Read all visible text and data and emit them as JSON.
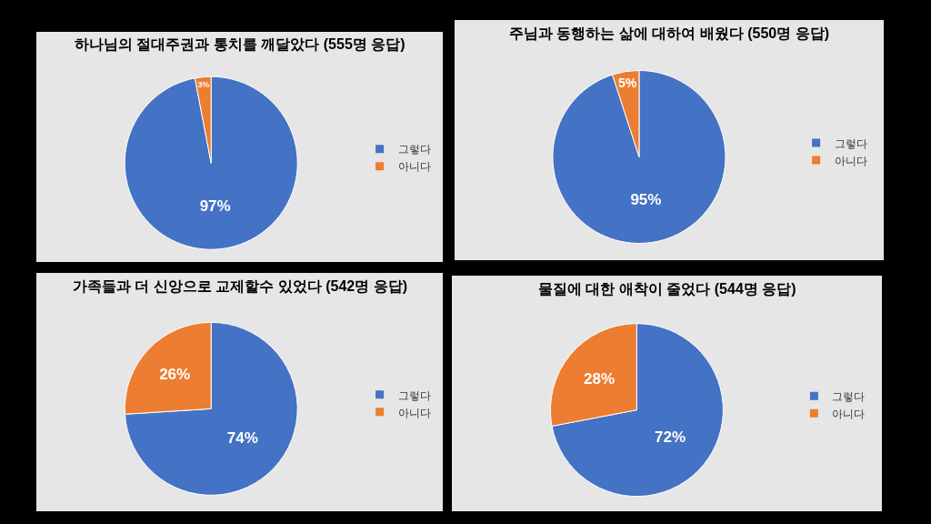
{
  "chart_data": [
    {
      "type": "pie",
      "title": "하나님의 절대주권과 통치를 깨달았다 (555명 응답)",
      "categories": [
        "그렇다",
        "아니다"
      ],
      "values": [
        97,
        3
      ],
      "colors": [
        "#4472c4",
        "#ed7d31"
      ],
      "value_labels": [
        "97%",
        "3%"
      ],
      "legend": "right"
    },
    {
      "type": "pie",
      "title": "주님과 동행하는 삶에 대하여 배웠다 (550명 응답)",
      "categories": [
        "그렇다",
        "아니다"
      ],
      "values": [
        95,
        5
      ],
      "colors": [
        "#4472c4",
        "#ed7d31"
      ],
      "value_labels": [
        "95%",
        "5%"
      ],
      "legend": "right"
    },
    {
      "type": "pie",
      "title": "가족들과 더 신앙으로 교제할수 있었다 (542명 응답)",
      "categories": [
        "그렇다",
        "아니다"
      ],
      "values": [
        74,
        26
      ],
      "colors": [
        "#4472c4",
        "#ed7d31"
      ],
      "value_labels": [
        "74%",
        "26%"
      ],
      "legend": "right"
    },
    {
      "type": "pie",
      "title": "물질에 대한 애착이 줄었다 (544명 응답)",
      "categories": [
        "그렇다",
        "아니다"
      ],
      "values": [
        72,
        28
      ],
      "colors": [
        "#4472c4",
        "#ed7d31"
      ],
      "value_labels": [
        "72%",
        "28%"
      ],
      "legend": "right"
    }
  ]
}
